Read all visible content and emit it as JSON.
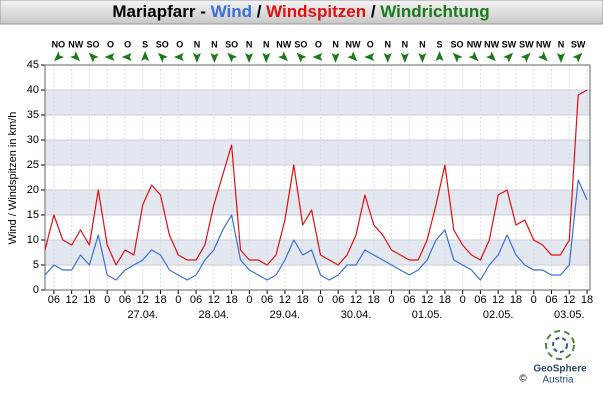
{
  "chart_data": {
    "type": "line",
    "title_parts": [
      {
        "text": "Mariapfarr - ",
        "color": "#000000"
      },
      {
        "text": "Wind",
        "color": "#3a6fd8"
      },
      {
        "text": " / ",
        "color": "#000000"
      },
      {
        "text": "Windspitzen",
        "color": "#e01010"
      },
      {
        "text": " / ",
        "color": "#000000"
      },
      {
        "text": "Windrichtung",
        "color": "#1a7a1a"
      }
    ],
    "ylabel": "Wind / Windspitzen in km/h",
    "xlim": [
      3,
      187
    ],
    "ylim": [
      0,
      45
    ],
    "yticks": [
      0,
      5,
      10,
      15,
      20,
      25,
      30,
      35,
      40,
      45
    ],
    "xticks": [
      {
        "value": 6,
        "label": "06"
      },
      {
        "value": 12,
        "label": "12"
      },
      {
        "value": 18,
        "label": "18"
      },
      {
        "value": 24,
        "label": "0"
      },
      {
        "value": 30,
        "label": "06"
      },
      {
        "value": 36,
        "label": "12"
      },
      {
        "value": 42,
        "label": "18"
      },
      {
        "value": 48,
        "label": "0"
      },
      {
        "value": 54,
        "label": "06"
      },
      {
        "value": 60,
        "label": "12"
      },
      {
        "value": 66,
        "label": "18"
      },
      {
        "value": 72,
        "label": "0"
      },
      {
        "value": 78,
        "label": "06"
      },
      {
        "value": 84,
        "label": "12"
      },
      {
        "value": 90,
        "label": "18"
      },
      {
        "value": 96,
        "label": "0"
      },
      {
        "value": 102,
        "label": "06"
      },
      {
        "value": 108,
        "label": "12"
      },
      {
        "value": 114,
        "label": "18"
      },
      {
        "value": 120,
        "label": "0"
      },
      {
        "value": 126,
        "label": "06"
      },
      {
        "value": 132,
        "label": "12"
      },
      {
        "value": 138,
        "label": "18"
      },
      {
        "value": 144,
        "label": "0"
      },
      {
        "value": 150,
        "label": "06"
      },
      {
        "value": 156,
        "label": "12"
      },
      {
        "value": 162,
        "label": "18"
      },
      {
        "value": 168,
        "label": "0"
      },
      {
        "value": 174,
        "label": "06"
      },
      {
        "value": 180,
        "label": "12"
      },
      {
        "value": 186,
        "label": "18"
      }
    ],
    "date_labels": [
      {
        "value": 36,
        "label": "27.04."
      },
      {
        "value": 60,
        "label": "28.04."
      },
      {
        "value": 84,
        "label": "29.04."
      },
      {
        "value": 108,
        "label": "30.04."
      },
      {
        "value": 132,
        "label": "01.05."
      },
      {
        "value": 156,
        "label": "02.05."
      },
      {
        "value": 180,
        "label": "03.05."
      }
    ],
    "grid": true,
    "x": [
      3,
      6,
      9,
      12,
      15,
      18,
      21,
      24,
      27,
      30,
      33,
      36,
      39,
      42,
      45,
      48,
      51,
      54,
      57,
      60,
      63,
      66,
      69,
      72,
      75,
      78,
      81,
      84,
      87,
      90,
      93,
      96,
      99,
      102,
      105,
      108,
      111,
      114,
      117,
      120,
      123,
      126,
      129,
      132,
      135,
      138,
      141,
      144,
      147,
      150,
      153,
      156,
      159,
      162,
      165,
      168,
      171,
      174,
      177,
      180,
      183,
      186
    ],
    "series": [
      {
        "name": "Windspitzen",
        "color": "#e01010",
        "values": [
          8,
          15,
          10,
          9,
          12,
          9,
          20,
          9,
          5,
          8,
          7,
          17,
          21,
          19,
          11,
          7,
          6,
          6,
          9,
          17,
          23,
          29,
          8,
          6,
          6,
          5,
          7,
          14,
          25,
          13,
          16,
          7,
          6,
          5,
          7,
          11,
          19,
          13,
          11,
          8,
          7,
          6,
          6,
          10,
          17,
          25,
          12,
          9,
          7,
          6,
          10,
          19,
          20,
          13,
          14,
          10,
          9,
          7,
          7,
          10,
          39,
          40
        ]
      },
      {
        "name": "Wind",
        "color": "#3a6fd8",
        "values": [
          3,
          5,
          4,
          4,
          7,
          5,
          11,
          3,
          2,
          4,
          5,
          6,
          8,
          7,
          4,
          3,
          2,
          3,
          6,
          8,
          12,
          15,
          6,
          4,
          3,
          2,
          3,
          6,
          10,
          7,
          8,
          3,
          2,
          3,
          5,
          5,
          8,
          7,
          6,
          5,
          4,
          3,
          4,
          6,
          10,
          12,
          6,
          5,
          4,
          2,
          5,
          7,
          11,
          7,
          5,
          4,
          4,
          3,
          3,
          5,
          22,
          18
        ]
      }
    ],
    "wind_direction": {
      "x": [
        7.5,
        13.4,
        19.2,
        25.1,
        30.9,
        36.8,
        42.6,
        48.5,
        54.3,
        60.2,
        66,
        71.9,
        77.7,
        83.6,
        89.4,
        95.3,
        101.1,
        107,
        112.8,
        118.7,
        124.5,
        130.4,
        136.2,
        142.1,
        147.9,
        153.8,
        159.6,
        165.5,
        171.3,
        177.2,
        183
      ],
      "labels": [
        "NO",
        "NW",
        "SO",
        "O",
        "O",
        "S",
        "SO",
        "O",
        "N",
        "N",
        "SO",
        "N",
        "N",
        "NW",
        "SO",
        "O",
        "N",
        "NW",
        "O",
        "N",
        "N",
        "N",
        "S",
        "SO",
        "NW",
        "NW",
        "SW",
        "SW",
        "NW",
        "N",
        "SW"
      ],
      "color": "#1a7a1a"
    },
    "logo": {
      "name": "GeoSphere",
      "country": "Austria",
      "copyright": "©"
    }
  }
}
